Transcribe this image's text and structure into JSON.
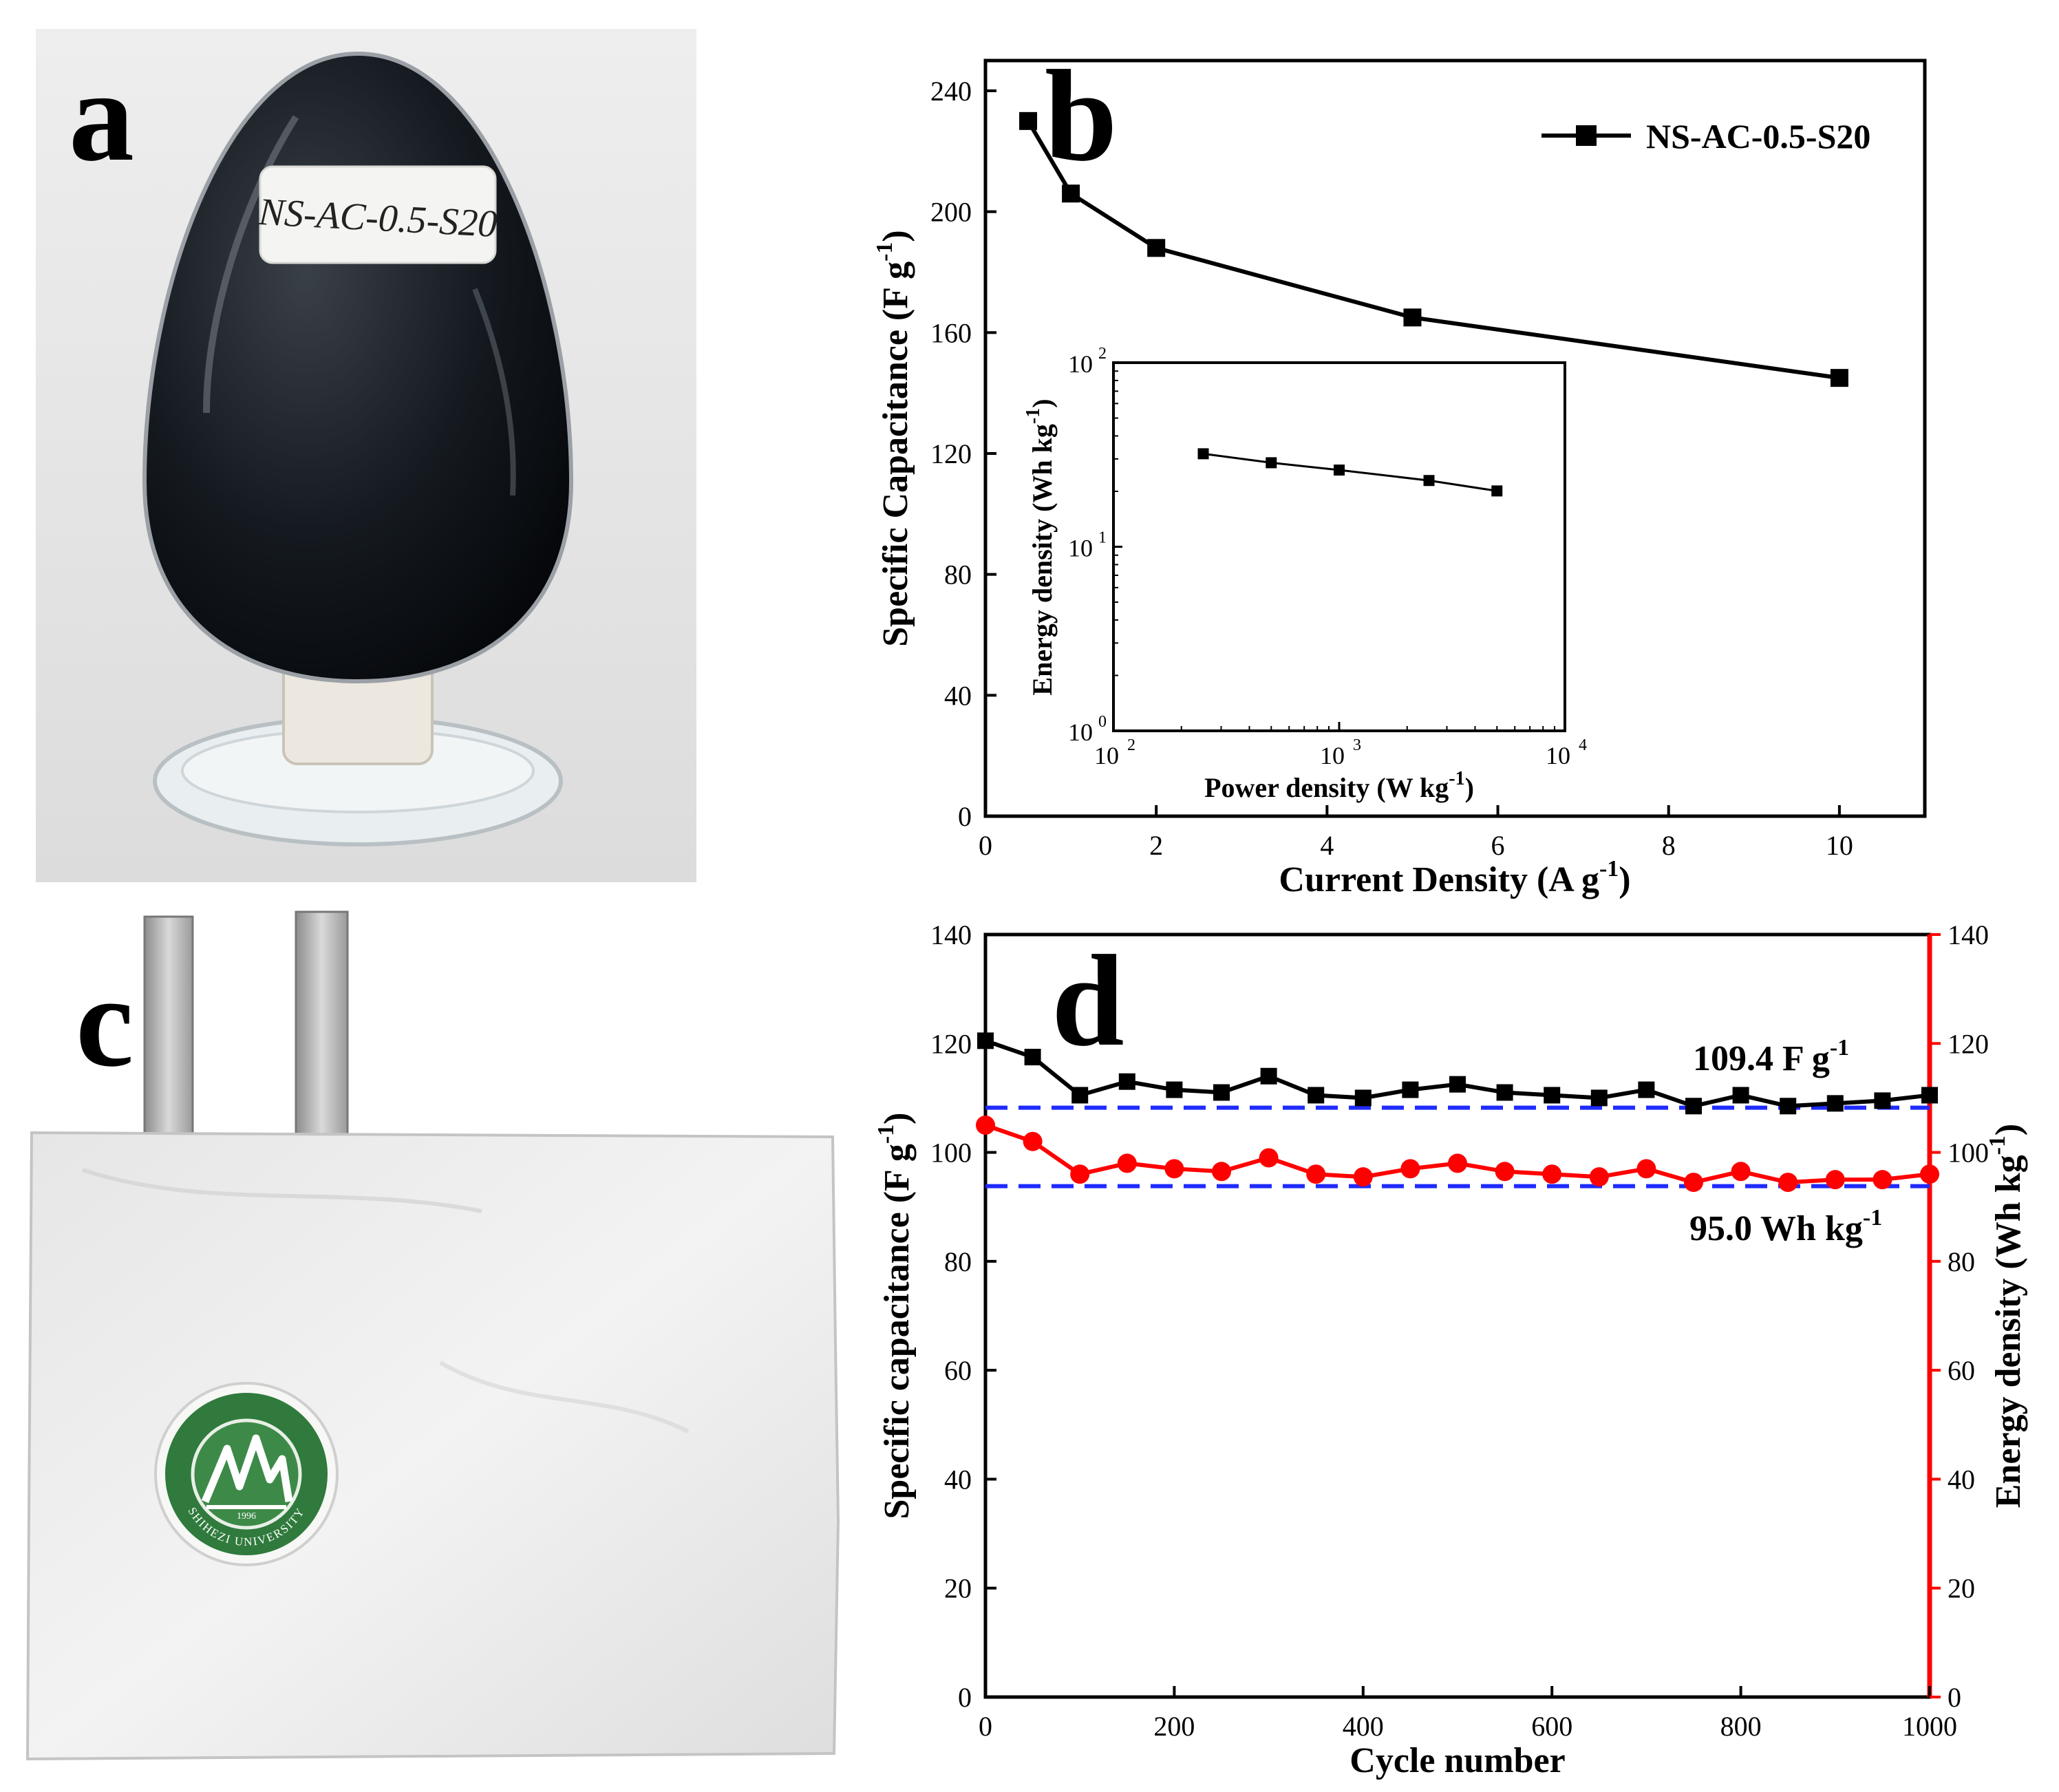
{
  "panels": {
    "a": {
      "letter": "a",
      "sample_label": "NS-AC-0.5-S20"
    },
    "b": {
      "letter": "b"
    },
    "c": {
      "letter": "c",
      "logo_text": "SHIHEZI UNIVERSITY",
      "logo_year": "1996"
    },
    "d": {
      "letter": "d"
    }
  },
  "colors": {
    "black": "#000000",
    "red": "#ff0000",
    "blue": "#1f2bff",
    "logo_green": "#2f7a3c"
  },
  "chart_data": [
    {
      "id": "b",
      "type": "line",
      "xlabel": "Current Density (A g",
      "xlabel_sup": "-1",
      "xlabel_end": ")",
      "ylabel": "Specific Capacitance (F g",
      "ylabel_sup": "-1",
      "ylabel_end": ")",
      "xlim": [
        0,
        11
      ],
      "ylim": [
        0,
        250
      ],
      "xticks": [
        0,
        2,
        4,
        6,
        8,
        10
      ],
      "yticks": [
        0,
        40,
        80,
        120,
        160,
        200,
        240
      ],
      "legend": "top-right",
      "series": [
        {
          "name": "NS-AC-0.5-S20",
          "marker": "square",
          "color": "#000000",
          "x": [
            0.5,
            1,
            2,
            5,
            10
          ],
          "y": [
            230,
            206,
            188,
            165,
            145
          ]
        }
      ]
    },
    {
      "id": "b-inset",
      "type": "line",
      "xscale": "log",
      "yscale": "log",
      "xlabel": "Power density (W kg",
      "xlabel_sup": "-1",
      "xlabel_end": ")",
      "ylabel": "Energy density (Wh kg",
      "ylabel_sup": "-1",
      "ylabel_end": ")",
      "xlim": [
        100,
        10000
      ],
      "ylim": [
        1,
        100
      ],
      "xtick_labels": [
        {
          "v": 100,
          "base": "10",
          "exp": "2"
        },
        {
          "v": 1000,
          "base": "10",
          "exp": "3"
        },
        {
          "v": 10000,
          "base": "10",
          "exp": "4"
        }
      ],
      "ytick_labels": [
        {
          "v": 1,
          "base": "10",
          "exp": "0"
        },
        {
          "v": 10,
          "base": "10",
          "exp": "1"
        },
        {
          "v": 100,
          "base": "10",
          "exp": "2"
        }
      ],
      "series": [
        {
          "marker": "square",
          "color": "#000000",
          "x": [
            250,
            500,
            1000,
            2500,
            5000
          ],
          "y": [
            32.0,
            28.6,
            26.1,
            22.9,
            20.1
          ]
        }
      ]
    },
    {
      "id": "d",
      "type": "line",
      "xlabel": "Cycle number",
      "ylabel_left": "Specific capacitance (F g",
      "ylabel_left_sup": "-1",
      "ylabel_left_end": ")",
      "ylabel_right": "Energy density (Wh kg",
      "ylabel_right_sup": "-1",
      "ylabel_right_end": ")",
      "xlim": [
        0,
        1000
      ],
      "ylim_left": [
        0,
        140
      ],
      "ylim_right": [
        0,
        140
      ],
      "xticks": [
        0,
        200,
        400,
        600,
        800,
        1000
      ],
      "yticks": [
        0,
        20,
        40,
        60,
        80,
        100,
        120,
        140
      ],
      "annotations": [
        {
          "text": "109.4 F g",
          "sup": "-1"
        },
        {
          "text": "95.0 Wh kg",
          "sup": "-1"
        }
      ],
      "reference_lines": [
        108.2,
        93.8
      ],
      "series": [
        {
          "axis": "left",
          "marker": "square",
          "color": "#000000",
          "x": [
            0,
            50,
            100,
            150,
            200,
            250,
            300,
            350,
            400,
            450,
            500,
            550,
            600,
            650,
            700,
            750,
            800,
            850,
            900,
            950,
            1000
          ],
          "y": [
            120.5,
            117.5,
            110.5,
            113,
            111.5,
            111,
            114,
            110.5,
            110,
            111.5,
            112.5,
            111,
            110.5,
            110,
            111.5,
            108.5,
            110.5,
            108.5,
            109,
            109.5,
            110.5
          ]
        },
        {
          "axis": "right",
          "marker": "circle",
          "color": "#ff0000",
          "x": [
            0,
            50,
            100,
            150,
            200,
            250,
            300,
            350,
            400,
            450,
            500,
            550,
            600,
            650,
            700,
            750,
            800,
            850,
            900,
            950,
            1000
          ],
          "y": [
            105,
            102,
            96,
            98,
            97,
            96.5,
            99,
            96,
            95.5,
            97,
            98,
            96.5,
            96,
            95.5,
            97,
            94.5,
            96.5,
            94.5,
            95,
            95,
            96
          ]
        }
      ]
    }
  ]
}
